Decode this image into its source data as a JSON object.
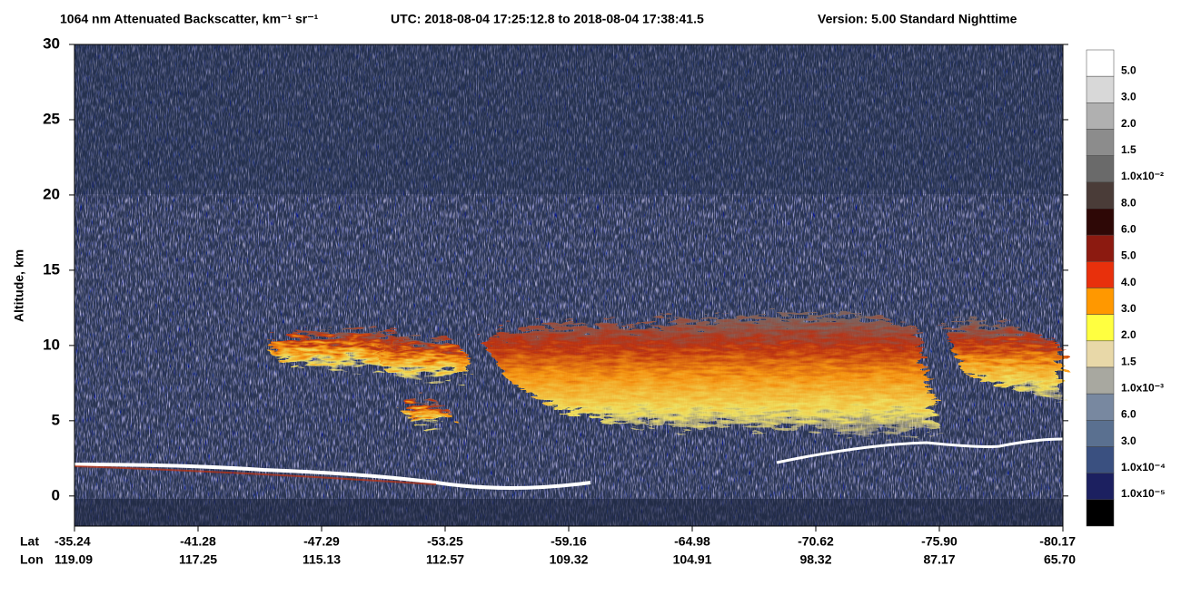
{
  "chart_data": {
    "type": "heatmap",
    "title": "1064 nm Attenuated Backscatter, km⁻¹ sr⁻¹",
    "time_range": "UTC:  2018-08-04 17:25:12.8  to  2018-08-04 17:38:41.5",
    "version": "Version: 5.00  Standard  Nighttime",
    "y_label": "Altitude, km",
    "ylim": [
      -2,
      30
    ],
    "yticks": [
      0,
      5,
      10,
      15,
      20,
      25,
      30
    ],
    "lat_title": "Lat",
    "lon_title": "Lon",
    "lat_labels": [
      "-35.24",
      "-41.28",
      "-47.29",
      "-53.25",
      "-59.16",
      "-64.98",
      "-70.62",
      "-75.90",
      "-80.17"
    ],
    "lon_labels": [
      "119.09",
      "117.25",
      "115.13",
      "112.57",
      "109.32",
      "104.91",
      "98.32",
      "87.17",
      "65.70"
    ],
    "colorbar": {
      "labels": [
        "5.0",
        "3.0",
        "2.0",
        "1.5",
        "1.0x10⁻²",
        "8.0",
        "6.0",
        "5.0",
        "4.0",
        "3.0",
        "2.0",
        "1.5",
        "1.0x10⁻³",
        "6.0",
        "3.0",
        "1.0x10⁻⁴",
        "1.0x10⁻⁵"
      ],
      "colors": [
        "#ffffff",
        "#d8d8d8",
        "#b0b0b0",
        "#8c8c8c",
        "#6a6a6a",
        "#4a3c38",
        "#2e0806",
        "#8c1a10",
        "#e8300c",
        "#ff9800",
        "#ffff40",
        "#e8d8a8",
        "#a8a8a0",
        "#7888a0",
        "#5a7090",
        "#3a5080",
        "#1c2060",
        "#000000"
      ]
    }
  }
}
